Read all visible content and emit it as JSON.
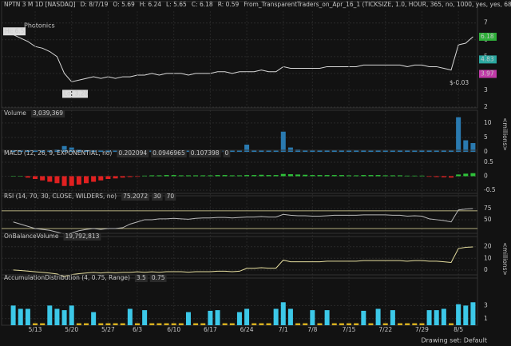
{
  "chart_data": [
    {
      "type": "line",
      "title": "NPTN 3 M 1D [NASDAQ]",
      "info": [
        "D: 8/7/19",
        "O: 5.69",
        "H: 6.24",
        "L: 5.65",
        "C: 6.18",
        "R: 0.59"
      ],
      "study": "From_TransparentTraders_on_Apr_16_1 (TICKSIZE, 1.0, HOUR, 365, no, 1000, yes, yes, 68, 0,",
      "watermark": "Photonics",
      "hi_label": "Hi: 6.5",
      "lo_label": "Lo: 3.26",
      "note": "$-0.03",
      "categories": [
        null,
        null,
        null,
        "5/13",
        null,
        null,
        null,
        null,
        "5/20",
        null,
        null,
        null,
        null,
        "5/27",
        null,
        null,
        null,
        "6/3",
        null,
        null,
        null,
        null,
        "6/10",
        null,
        null,
        null,
        null,
        "6/17",
        null,
        null,
        null,
        null,
        "6/24",
        null,
        null,
        null,
        null,
        "7/1",
        null,
        null,
        null,
        "7/8",
        null,
        null,
        null,
        null,
        "7/15",
        null,
        null,
        null,
        null,
        "7/22",
        null,
        null,
        null,
        null,
        "7/29",
        null,
        null,
        null,
        null,
        "8/5",
        null,
        null
      ],
      "values": [
        6.3,
        6.1,
        5.9,
        5.6,
        5.5,
        5.3,
        5.0,
        4.0,
        3.5,
        3.6,
        3.7,
        3.8,
        3.7,
        3.8,
        3.7,
        3.8,
        3.8,
        3.9,
        3.9,
        4.0,
        3.9,
        4.0,
        4.0,
        4.0,
        3.9,
        4.0,
        4.0,
        4.0,
        4.1,
        4.1,
        4.0,
        4.1,
        4.1,
        4.1,
        4.2,
        4.1,
        4.1,
        4.4,
        4.3,
        4.3,
        4.3,
        4.3,
        4.3,
        4.4,
        4.4,
        4.4,
        4.4,
        4.4,
        4.5,
        4.5,
        4.5,
        4.5,
        4.5,
        4.5,
        4.4,
        4.5,
        4.5,
        4.4,
        4.4,
        4.3,
        4.2,
        5.7,
        5.8,
        6.18
      ],
      "color": "#d8d8d8",
      "hi": 6.5,
      "lo": 3.26,
      "price_tags": [
        6.18,
        4.83,
        3.97
      ],
      "price_tag_colors": [
        "#2fae3a",
        "#2aa7a0",
        "#c03aa8"
      ],
      "ylim": [
        1.95,
        7.7
      ],
      "yticks": [
        2,
        3,
        4,
        5,
        6,
        7
      ]
    },
    {
      "type": "bar",
      "title": "Volume",
      "readouts": [
        "3,039,369"
      ],
      "unit": "<millions>",
      "values": [
        0.6,
        0.5,
        0.5,
        0.6,
        0.5,
        0.6,
        0.8,
        2.0,
        1.5,
        0.8,
        0.6,
        0.5,
        0.5,
        0.5,
        0.4,
        0.4,
        0.4,
        0.5,
        0.4,
        0.4,
        0.4,
        0.5,
        0.4,
        0.4,
        0.4,
        0.4,
        0.4,
        0.4,
        0.4,
        0.5,
        0.4,
        0.4,
        2.5,
        0.6,
        0.5,
        0.4,
        0.4,
        7,
        1.5,
        0.8,
        0.6,
        0.6,
        0.5,
        0.5,
        0.5,
        0.5,
        0.4,
        0.5,
        0.5,
        0.4,
        0.5,
        0.4,
        0.4,
        0.5,
        0.5,
        0.4,
        0.5,
        0.5,
        0.4,
        0.5,
        0.6,
        12,
        4,
        3.04
      ],
      "color": "#2a7ab0",
      "ylim": [
        0,
        12.2
      ],
      "yticks": [
        0,
        5,
        10
      ]
    },
    {
      "type": "bar",
      "title": "MACD (12, 26, 9, EXPONENTIAL, no)",
      "readouts": [
        "0.202094",
        "0.0946965",
        "0.107398",
        "0"
      ],
      "values": [
        0,
        0,
        -0.05,
        -0.1,
        -0.15,
        -0.2,
        -0.25,
        -0.35,
        -0.35,
        -0.3,
        -0.25,
        -0.2,
        -0.15,
        -0.1,
        -0.08,
        -0.05,
        -0.03,
        -0.02,
        0.02,
        0.03,
        0.03,
        0.04,
        0.04,
        0.03,
        0.03,
        0.03,
        0.03,
        0.03,
        0.04,
        0.04,
        0.03,
        0.03,
        0.04,
        0.04,
        0.05,
        0.04,
        0.04,
        0.08,
        0.07,
        0.06,
        0.05,
        0.04,
        0.04,
        0.04,
        0.04,
        0.04,
        0.03,
        0.03,
        0.04,
        0.04,
        0.04,
        0.03,
        0.03,
        0.03,
        0.02,
        0.02,
        0.02,
        -0.02,
        -0.03,
        -0.04,
        -0.05,
        0.06,
        0.09,
        0.107398
      ],
      "pos_color": "#2fc23a",
      "neg_color": "#e02020",
      "ylim": [
        -0.7,
        0.7
      ],
      "yticks": [
        -0.5,
        0,
        0.5
      ]
    },
    {
      "type": "line",
      "title": "RSI (14, 70, 30, CLOSE, WILDERS, no)",
      "readouts": [
        75.2072,
        30,
        70
      ],
      "values": [
        45,
        40,
        35,
        30,
        28,
        26,
        22,
        18,
        20,
        25,
        28,
        30,
        28,
        30,
        30,
        32,
        40,
        45,
        50,
        50,
        52,
        52,
        53,
        52,
        51,
        53,
        54,
        54,
        55,
        55,
        54,
        55,
        56,
        56,
        57,
        56,
        56,
        62,
        60,
        59,
        59,
        58,
        58,
        59,
        60,
        60,
        60,
        60,
        61,
        61,
        61,
        61,
        60,
        60,
        58,
        59,
        58,
        52,
        50,
        48,
        45,
        72,
        74,
        75.2072
      ],
      "color": "#b8b8b8",
      "level_color": "#e8e0a0",
      "ylim": [
        12,
        95
      ],
      "yticks": [
        50,
        75
      ]
    },
    {
      "type": "line",
      "title": "OnBalanceVolume",
      "readouts": [
        "19,792,813"
      ],
      "unit": "<millions>",
      "values": [
        0,
        -0.5,
        -1,
        -1.6,
        -2.1,
        -2.7,
        -3.5,
        -5.5,
        -4,
        -3.2,
        -2.6,
        -2.1,
        -2.6,
        -2.1,
        -2.5,
        -2.1,
        -2.1,
        -1.6,
        -2,
        -1.6,
        -2,
        -1.5,
        -1.5,
        -1.5,
        -1.9,
        -1.5,
        -1.5,
        -1.5,
        -1.1,
        -1.1,
        -1.5,
        -1.1,
        1.4,
        1.4,
        1.9,
        1.5,
        1.5,
        8.5,
        7,
        7,
        7,
        7,
        7,
        7.5,
        7.5,
        7.5,
        7.5,
        7.5,
        8,
        8,
        8,
        8,
        8,
        8,
        7.5,
        8,
        8,
        7.5,
        7.5,
        7,
        6.4,
        18.4,
        19.5,
        19.792813
      ],
      "color": "#e8e0a0",
      "ylim": [
        -7,
        26
      ],
      "yticks": [
        0,
        10,
        20
      ]
    },
    {
      "type": "bar",
      "title": "AccumulationDistribution (4, 0.75, Range)",
      "readouts": [
        3.5,
        0.75
      ],
      "values": [
        3,
        2.5,
        2.5,
        0.3,
        0.3,
        3,
        2.5,
        2.3,
        3,
        0.3,
        0.3,
        2,
        0.3,
        0.3,
        0.3,
        0.3,
        2.5,
        0.3,
        2.3,
        0.3,
        0.3,
        0.3,
        0.3,
        0.3,
        2,
        0.3,
        0.3,
        2.2,
        2.3,
        0.3,
        0.3,
        2,
        2.5,
        0.3,
        0.3,
        0.3,
        2.5,
        3.5,
        2.5,
        0.3,
        0.3,
        2.3,
        0.3,
        2.3,
        0.3,
        0.3,
        0.3,
        0.3,
        2.2,
        0.3,
        2.5,
        0.3,
        2.3,
        0.3,
        0.3,
        0.3,
        0.3,
        2.3,
        2.3,
        2.5,
        0.3,
        3.2,
        3,
        3.5
      ],
      "color": "#3cc8e8",
      "low_color": "#d8b020",
      "ylim": [
        0,
        6.7
      ],
      "yticks": [
        1,
        3
      ]
    }
  ],
  "footer": "Drawing set: Default"
}
